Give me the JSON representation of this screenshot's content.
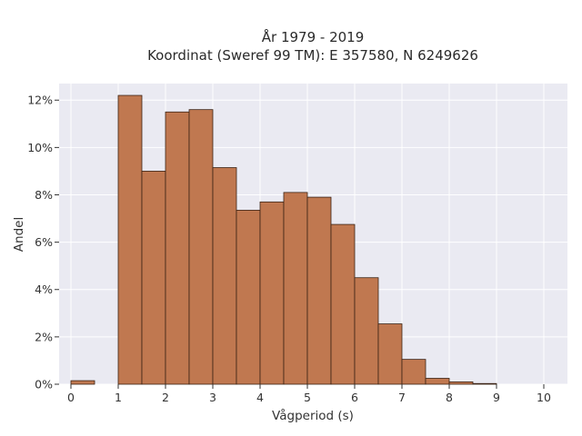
{
  "chart_data": {
    "type": "bar",
    "title_lines": [
      "År 1979 - 2019",
      "Koordinat (Sweref 99 TM): E 357580, N 6249626"
    ],
    "xlabel": "Vågperiod (s)",
    "ylabel": "Andel",
    "xlim": [
      -0.25,
      10.5
    ],
    "ylim": [
      0,
      12.7
    ],
    "x_ticks": [
      0,
      1,
      2,
      3,
      4,
      5,
      6,
      7,
      8,
      9,
      10
    ],
    "x_tick_labels": [
      "0",
      "1",
      "2",
      "3",
      "4",
      "5",
      "6",
      "7",
      "8",
      "9",
      "10"
    ],
    "y_ticks": [
      0,
      2,
      4,
      6,
      8,
      10,
      12
    ],
    "y_tick_labels": [
      "0%",
      "2%",
      "4%",
      "6%",
      "8%",
      "10%",
      "12%"
    ],
    "bin_width": 0.5,
    "bins_start": [
      0,
      0.5,
      1,
      1.5,
      2,
      2.5,
      3,
      3.5,
      4,
      4.5,
      5,
      5.5,
      6,
      6.5,
      7,
      7.5,
      8,
      8.5,
      9,
      9.5
    ],
    "values_percent": [
      0.15,
      0,
      12.2,
      9.0,
      11.5,
      11.6,
      9.15,
      7.35,
      7.7,
      8.1,
      7.9,
      6.75,
      4.5,
      2.55,
      1.05,
      0.25,
      0.1,
      0.03,
      0,
      0
    ],
    "grid": true,
    "legend": "none"
  },
  "colors": {
    "bar_fill": "#c07850",
    "bar_edge": "#3b2315",
    "plot_background": "#eaeaf2",
    "grid": "#ffffff"
  }
}
